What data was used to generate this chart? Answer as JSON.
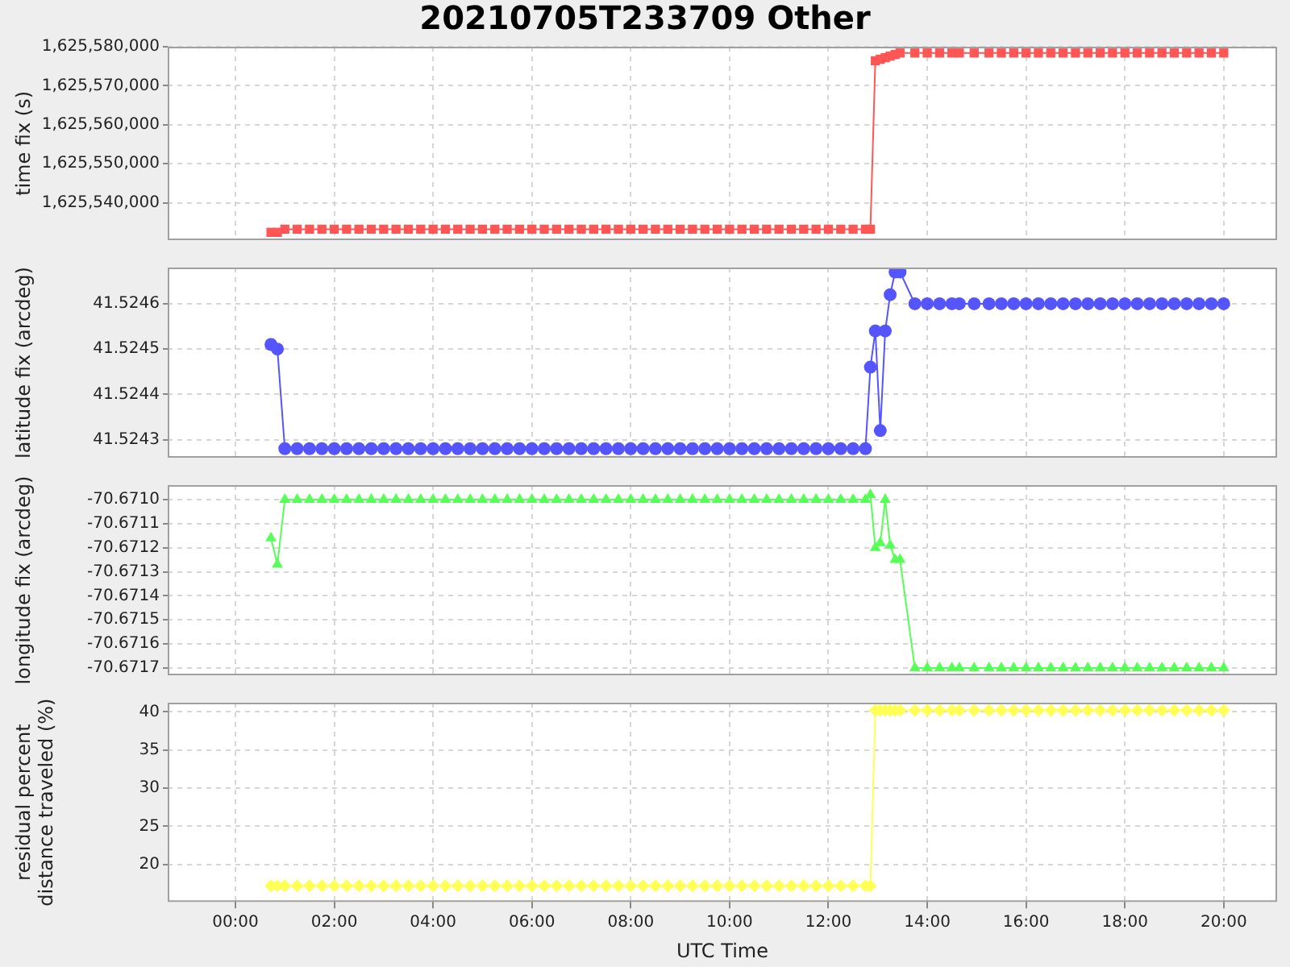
{
  "chart_data": [
    {
      "type": "line",
      "title": "20210705T233709 Other",
      "ylabel": "time fix (s)",
      "marker": "square",
      "line_style": "solid",
      "grid": true,
      "legend": false,
      "tick_labels": "y",
      "x": [
        0.72,
        0.85,
        1,
        1.25,
        1.5,
        1.75,
        2,
        2.25,
        2.5,
        2.75,
        3,
        3.25,
        3.5,
        3.75,
        4,
        4.25,
        4.5,
        4.75,
        5,
        5.25,
        5.5,
        5.75,
        6,
        6.25,
        6.5,
        6.75,
        7,
        7.25,
        7.5,
        7.75,
        8,
        8.25,
        8.5,
        8.75,
        9,
        9.25,
        9.5,
        9.75,
        10,
        10.25,
        10.5,
        10.75,
        11,
        11.25,
        11.5,
        11.75,
        12,
        12.25,
        12.5,
        12.75,
        12.85,
        12.95,
        13.05,
        13.15,
        13.25,
        13.35,
        13.45,
        13.75,
        14,
        14.25,
        14.5,
        14.65,
        14.95,
        15.25,
        15.5,
        15.75,
        16,
        16.25,
        16.5,
        16.75,
        17,
        17.25,
        17.5,
        17.75,
        18,
        18.25,
        18.5,
        18.75,
        19,
        19.25,
        19.5,
        19.75,
        20
      ],
      "series": [
        {
          "color": "#ff5555",
          "values": [
            1625532400,
            1625532400,
            1625533200,
            1625533200,
            1625533200,
            1625533200,
            1625533200,
            1625533200,
            1625533200,
            1625533200,
            1625533200,
            1625533200,
            1625533200,
            1625533200,
            1625533200,
            1625533200,
            1625533200,
            1625533200,
            1625533200,
            1625533200,
            1625533200,
            1625533200,
            1625533200,
            1625533200,
            1625533200,
            1625533200,
            1625533200,
            1625533200,
            1625533200,
            1625533200,
            1625533200,
            1625533200,
            1625533200,
            1625533200,
            1625533200,
            1625533200,
            1625533200,
            1625533200,
            1625533200,
            1625533200,
            1625533200,
            1625533200,
            1625533200,
            1625533200,
            1625533200,
            1625533200,
            1625533200,
            1625533200,
            1625533200,
            1625533200,
            1625533200,
            1625576400,
            1625576800,
            1625577200,
            1625577600,
            1625578000,
            1625578400,
            1625578400,
            1625578400,
            1625578400,
            1625578400,
            1625578400,
            1625578400,
            1625578400,
            1625578400,
            1625578400,
            1625578400,
            1625578400,
            1625578400,
            1625578400,
            1625578400,
            1625578400,
            1625578400,
            1625578400,
            1625578400,
            1625578400,
            1625578400,
            1625578400,
            1625578400,
            1625578400,
            1625578400,
            1625578400,
            1625578400
          ]
        }
      ],
      "xlim": [
        -1.37,
        21.08
      ],
      "xticks": [
        {
          "value": 0,
          "label": null
        },
        {
          "value": 2,
          "label": null
        },
        {
          "value": 4,
          "label": null
        },
        {
          "value": 6,
          "label": null
        },
        {
          "value": 8,
          "label": null
        },
        {
          "value": 10,
          "label": null
        },
        {
          "value": 12,
          "label": null
        },
        {
          "value": 14,
          "label": null
        },
        {
          "value": 16,
          "label": null
        },
        {
          "value": 18,
          "label": null
        },
        {
          "value": 20,
          "label": null
        }
      ],
      "ylim": [
        1625530400,
        1625580000
      ],
      "yticks": [
        {
          "value": 1625540000,
          "label": "1,625,540,000"
        },
        {
          "value": 1625550000,
          "label": "1,625,550,000"
        },
        {
          "value": 1625560000,
          "label": "1,625,560,000"
        },
        {
          "value": 1625570000,
          "label": "1,625,570,000"
        },
        {
          "value": 1625580000,
          "label": "1,625,580,000"
        }
      ]
    },
    {
      "type": "line",
      "ylabel": "latitude fix (arcdeg)",
      "marker": "circle",
      "line_style": "solid",
      "grid": true,
      "legend": false,
      "tick_labels": "y",
      "x": [
        0.72,
        0.85,
        1,
        1.25,
        1.5,
        1.75,
        2,
        2.25,
        2.5,
        2.75,
        3,
        3.25,
        3.5,
        3.75,
        4,
        4.25,
        4.5,
        4.75,
        5,
        5.25,
        5.5,
        5.75,
        6,
        6.25,
        6.5,
        6.75,
        7,
        7.25,
        7.5,
        7.75,
        8,
        8.25,
        8.5,
        8.75,
        9,
        9.25,
        9.5,
        9.75,
        10,
        10.25,
        10.5,
        10.75,
        11,
        11.25,
        11.5,
        11.75,
        12,
        12.25,
        12.5,
        12.75,
        12.85,
        12.95,
        13.05,
        13.15,
        13.25,
        13.35,
        13.45,
        13.75,
        14,
        14.25,
        14.5,
        14.65,
        14.95,
        15.25,
        15.5,
        15.75,
        16,
        16.25,
        16.5,
        16.75,
        17,
        17.25,
        17.5,
        17.75,
        18,
        18.25,
        18.5,
        18.75,
        19,
        19.25,
        19.5,
        19.75,
        20
      ],
      "series": [
        {
          "color": "#5555ff",
          "values": [
            41.52451,
            41.5245,
            41.52428,
            41.52428,
            41.52428,
            41.52428,
            41.52428,
            41.52428,
            41.52428,
            41.52428,
            41.52428,
            41.52428,
            41.52428,
            41.52428,
            41.52428,
            41.52428,
            41.52428,
            41.52428,
            41.52428,
            41.52428,
            41.52428,
            41.52428,
            41.52428,
            41.52428,
            41.52428,
            41.52428,
            41.52428,
            41.52428,
            41.52428,
            41.52428,
            41.52428,
            41.52428,
            41.52428,
            41.52428,
            41.52428,
            41.52428,
            41.52428,
            41.52428,
            41.52428,
            41.52428,
            41.52428,
            41.52428,
            41.52428,
            41.52428,
            41.52428,
            41.52428,
            41.52428,
            41.52428,
            41.52428,
            41.52428,
            41.52446,
            41.52454,
            41.52432,
            41.52454,
            41.52462,
            41.52467,
            41.52467,
            41.5246,
            41.5246,
            41.5246,
            41.5246,
            41.5246,
            41.5246,
            41.5246,
            41.5246,
            41.5246,
            41.5246,
            41.5246,
            41.5246,
            41.5246,
            41.5246,
            41.5246,
            41.5246,
            41.5246,
            41.5246,
            41.5246,
            41.5246,
            41.5246,
            41.5246,
            41.5246,
            41.5246,
            41.5246,
            41.5246
          ]
        }
      ],
      "xlim": [
        -1.37,
        21.08
      ],
      "xticks": [
        {
          "value": 0,
          "label": null
        },
        {
          "value": 2,
          "label": null
        },
        {
          "value": 4,
          "label": null
        },
        {
          "value": 6,
          "label": null
        },
        {
          "value": 8,
          "label": null
        },
        {
          "value": 10,
          "label": null
        },
        {
          "value": 12,
          "label": null
        },
        {
          "value": 14,
          "label": null
        },
        {
          "value": 16,
          "label": null
        },
        {
          "value": 18,
          "label": null
        },
        {
          "value": 20,
          "label": null
        }
      ],
      "ylim": [
        41.52426,
        41.52468
      ],
      "yticks": [
        41.5243,
        41.5244,
        41.5245,
        41.5246
      ]
    },
    {
      "type": "line",
      "ylabel": "longitude fix (arcdeg)",
      "marker": "triangle",
      "line_style": "solid",
      "grid": true,
      "legend": false,
      "tick_labels": "y",
      "x": [
        0.72,
        0.85,
        1,
        1.25,
        1.5,
        1.75,
        2,
        2.25,
        2.5,
        2.75,
        3,
        3.25,
        3.5,
        3.75,
        4,
        4.25,
        4.5,
        4.75,
        5,
        5.25,
        5.5,
        5.75,
        6,
        6.25,
        6.5,
        6.75,
        7,
        7.25,
        7.5,
        7.75,
        8,
        8.25,
        8.5,
        8.75,
        9,
        9.25,
        9.5,
        9.75,
        10,
        10.25,
        10.5,
        10.75,
        11,
        11.25,
        11.5,
        11.75,
        12,
        12.25,
        12.5,
        12.75,
        12.85,
        12.95,
        13.05,
        13.15,
        13.25,
        13.35,
        13.45,
        13.75,
        14,
        14.25,
        14.5,
        14.65,
        14.95,
        15.25,
        15.5,
        15.75,
        16,
        16.25,
        16.5,
        16.75,
        17,
        17.25,
        17.5,
        17.75,
        18,
        18.25,
        18.5,
        18.75,
        19,
        19.25,
        19.5,
        19.75,
        20
      ],
      "series": [
        {
          "color": "#55ff55",
          "values": [
            -70.67116,
            -70.67127,
            -70.671,
            -70.671,
            -70.671,
            -70.671,
            -70.671,
            -70.671,
            -70.671,
            -70.671,
            -70.671,
            -70.671,
            -70.671,
            -70.671,
            -70.671,
            -70.671,
            -70.671,
            -70.671,
            -70.671,
            -70.671,
            -70.671,
            -70.671,
            -70.671,
            -70.671,
            -70.671,
            -70.671,
            -70.671,
            -70.671,
            -70.671,
            -70.671,
            -70.671,
            -70.671,
            -70.671,
            -70.671,
            -70.671,
            -70.671,
            -70.671,
            -70.671,
            -70.671,
            -70.671,
            -70.671,
            -70.671,
            -70.671,
            -70.671,
            -70.671,
            -70.671,
            -70.671,
            -70.671,
            -70.671,
            -70.671,
            -70.67098,
            -70.6712,
            -70.67118,
            -70.671,
            -70.67119,
            -70.67125,
            -70.67125,
            -70.6717,
            -70.6717,
            -70.6717,
            -70.6717,
            -70.6717,
            -70.6717,
            -70.6717,
            -70.6717,
            -70.6717,
            -70.6717,
            -70.6717,
            -70.6717,
            -70.6717,
            -70.6717,
            -70.6717,
            -70.6717,
            -70.6717,
            -70.6717,
            -70.6717,
            -70.6717,
            -70.6717,
            -70.6717,
            -70.6717,
            -70.6717,
            -70.6717,
            -70.6717
          ]
        }
      ],
      "xlim": [
        -1.37,
        21.08
      ],
      "xticks": [
        {
          "value": 0,
          "label": null
        },
        {
          "value": 2,
          "label": null
        },
        {
          "value": 4,
          "label": null
        },
        {
          "value": 6,
          "label": null
        },
        {
          "value": 8,
          "label": null
        },
        {
          "value": 10,
          "label": null
        },
        {
          "value": 12,
          "label": null
        },
        {
          "value": 14,
          "label": null
        },
        {
          "value": 16,
          "label": null
        },
        {
          "value": 18,
          "label": null
        },
        {
          "value": 20,
          "label": null
        }
      ],
      "ylim": [
        -70.67173,
        -70.67094
      ],
      "yticks": [
        {
          "value": -70.6717,
          "label": "-70.6717"
        },
        {
          "value": -70.6716,
          "label": "-70.6716"
        },
        {
          "value": -70.6715,
          "label": "-70.6715"
        },
        {
          "value": -70.6714,
          "label": "-70.6714"
        },
        {
          "value": -70.6713,
          "label": "-70.6713"
        },
        {
          "value": -70.6712,
          "label": "-70.6712"
        },
        {
          "value": -70.6711,
          "label": "-70.6711"
        },
        {
          "value": -70.671,
          "label": "-70.6710"
        }
      ]
    },
    {
      "type": "line",
      "xlabel": "UTC Time",
      "ylabel": "residual percent distance traveled (%)",
      "marker": "diamond",
      "line_style": "solid",
      "grid": true,
      "legend": false,
      "x": [
        0.72,
        0.85,
        1,
        1.25,
        1.5,
        1.75,
        2,
        2.25,
        2.5,
        2.75,
        3,
        3.25,
        3.5,
        3.75,
        4,
        4.25,
        4.5,
        4.75,
        5,
        5.25,
        5.5,
        5.75,
        6,
        6.25,
        6.5,
        6.75,
        7,
        7.25,
        7.5,
        7.75,
        8,
        8.25,
        8.5,
        8.75,
        9,
        9.25,
        9.5,
        9.75,
        10,
        10.25,
        10.5,
        10.75,
        11,
        11.25,
        11.5,
        11.75,
        12,
        12.25,
        12.5,
        12.75,
        12.85,
        12.95,
        13.05,
        13.15,
        13.25,
        13.35,
        13.45,
        13.75,
        14,
        14.25,
        14.5,
        14.65,
        14.95,
        15.25,
        15.5,
        15.75,
        16,
        16.25,
        16.5,
        16.75,
        17,
        17.25,
        17.5,
        17.75,
        18,
        18.25,
        18.5,
        18.75,
        19,
        19.25,
        19.5,
        19.75,
        20
      ],
      "series": [
        {
          "color": "#ffff55",
          "values": [
            17.2,
            17.2,
            17.2,
            17.2,
            17.2,
            17.2,
            17.2,
            17.2,
            17.2,
            17.2,
            17.2,
            17.2,
            17.2,
            17.2,
            17.2,
            17.2,
            17.2,
            17.2,
            17.2,
            17.2,
            17.2,
            17.2,
            17.2,
            17.2,
            17.2,
            17.2,
            17.2,
            17.2,
            17.2,
            17.2,
            17.2,
            17.2,
            17.2,
            17.2,
            17.2,
            17.2,
            17.2,
            17.2,
            17.2,
            17.2,
            17.2,
            17.2,
            17.2,
            17.2,
            17.2,
            17.2,
            17.2,
            17.2,
            17.2,
            17.2,
            17.2,
            40.2,
            40.2,
            40.2,
            40.2,
            40.2,
            40.2,
            40.2,
            40.2,
            40.2,
            40.2,
            40.2,
            40.2,
            40.2,
            40.2,
            40.2,
            40.2,
            40.2,
            40.2,
            40.2,
            40.2,
            40.2,
            40.2,
            40.2,
            40.2,
            40.2,
            40.2,
            40.2,
            40.2,
            40.2,
            40.2,
            40.2,
            40.2
          ]
        }
      ],
      "xlim": [
        -1.37,
        21.08
      ],
      "xticks": [
        {
          "value": 0,
          "label": "00:00"
        },
        {
          "value": 2,
          "label": "02:00"
        },
        {
          "value": 4,
          "label": "04:00"
        },
        {
          "value": 6,
          "label": "06:00"
        },
        {
          "value": 8,
          "label": "08:00"
        },
        {
          "value": 10,
          "label": "10:00"
        },
        {
          "value": 12,
          "label": "12:00"
        },
        {
          "value": 14,
          "label": "14:00"
        },
        {
          "value": 16,
          "label": "16:00"
        },
        {
          "value": 18,
          "label": "18:00"
        },
        {
          "value": 20,
          "label": "20:00"
        }
      ],
      "ylim": [
        15.1,
        41.2
      ],
      "yticks": [
        20,
        25,
        30,
        35,
        40
      ]
    }
  ]
}
